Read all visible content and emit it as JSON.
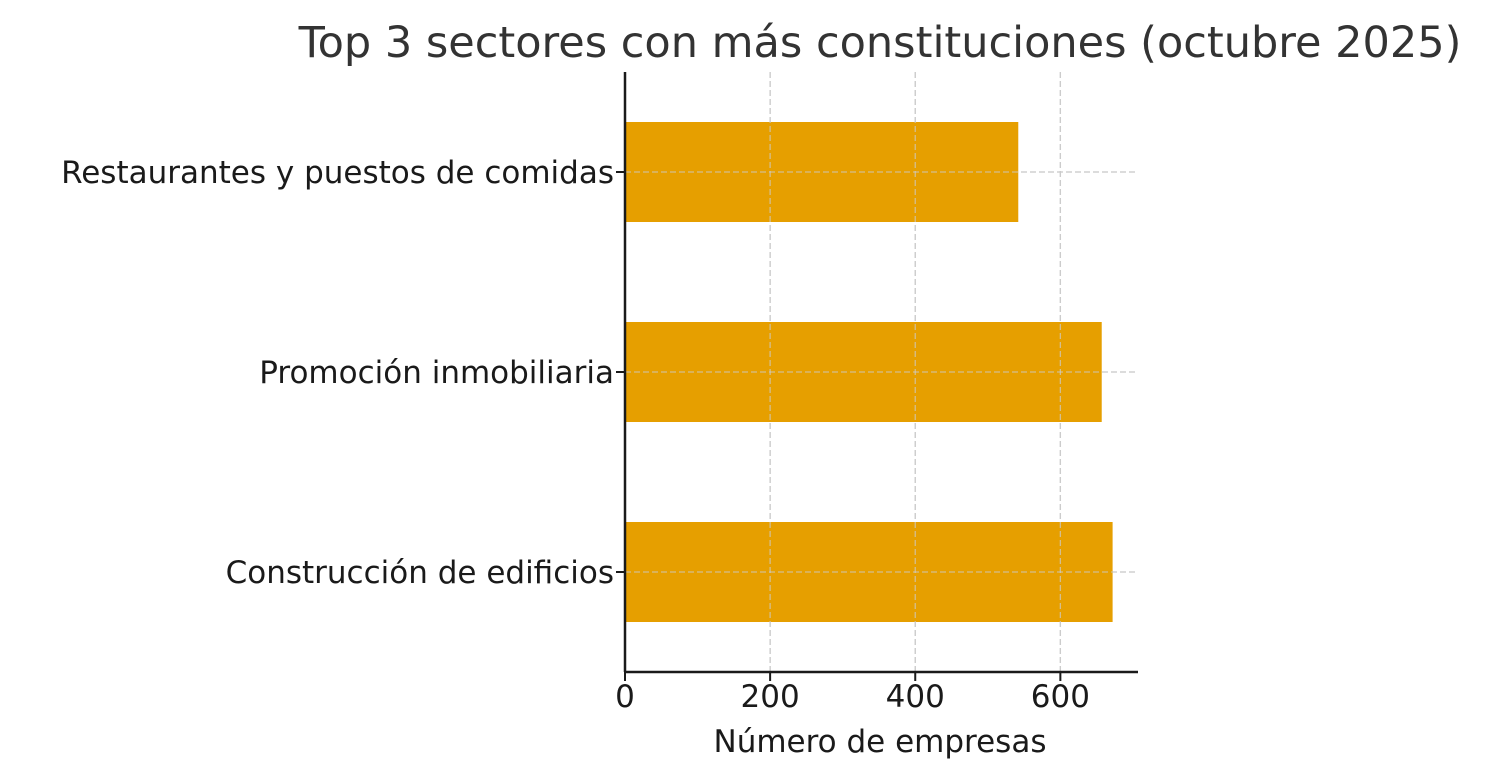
{
  "chart_data": {
    "type": "bar",
    "orientation": "horizontal",
    "title": "Top 3 sectores con más constituciones (octubre 2025)",
    "xlabel": "Número de empresas",
    "ylabel": "",
    "categories": [
      "Restaurantes y puestos de comidas",
      "Promoción inmobiliaria",
      "Construcción de edificios"
    ],
    "values": [
      542,
      657,
      672
    ],
    "xlim": [
      0,
      707
    ],
    "xticks": [
      0,
      200,
      400,
      600
    ],
    "xtick_labels": [
      "0",
      "200",
      "400",
      "600"
    ],
    "grid": true,
    "legend": null,
    "bar_color": "#E69F00"
  },
  "colors": {
    "bar": "#E69F00",
    "grid": "#cccccc",
    "axis": "#1a1a1a",
    "title": "#333333"
  }
}
